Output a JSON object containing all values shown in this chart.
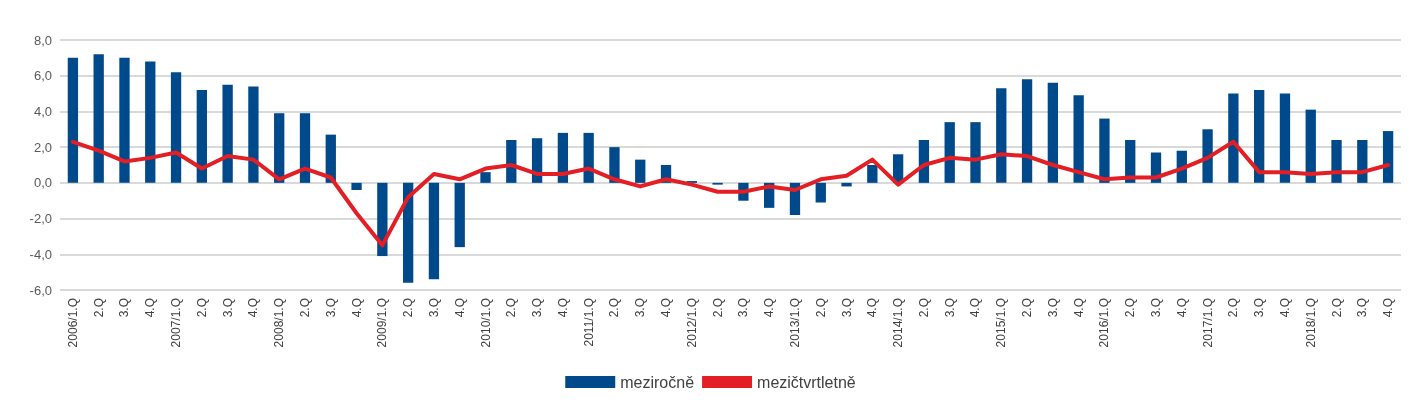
{
  "chart_data": {
    "type": "bar",
    "categories": [
      "2006/1.Q",
      "2.Q",
      "3.Q",
      "4.Q",
      "2007/1.Q",
      "2.Q",
      "3.Q",
      "4.Q",
      "2008/1.Q",
      "2.Q",
      "3.Q",
      "4.Q",
      "2009/1.Q",
      "2.Q",
      "3.Q",
      "4.Q",
      "2010/1.Q",
      "2.Q",
      "3.Q",
      "4.Q",
      "2011/1.Q",
      "2.Q",
      "3.Q",
      "4.Q",
      "2012/1.Q",
      "2.Q",
      "3.Q",
      "4.Q",
      "2013/1.Q",
      "2.Q",
      "3.Q",
      "4.Q",
      "2014/1.Q",
      "2.Q",
      "3.Q",
      "4.Q",
      "2015/1.Q",
      "2.Q",
      "3.Q",
      "4.Q",
      "2016/1.Q",
      "2.Q",
      "3.Q",
      "4.Q",
      "2017/1.Q",
      "2.Q",
      "3.Q",
      "4.Q",
      "2018/1.Q",
      "2.Q",
      "3.Q",
      "4.Q"
    ],
    "series": [
      {
        "name": "meziročně",
        "color": "#004a8c",
        "values": [
          7.0,
          7.2,
          7.0,
          6.8,
          6.2,
          5.2,
          5.5,
          5.4,
          3.9,
          3.9,
          2.7,
          -0.4,
          -4.1,
          -5.6,
          -5.4,
          -3.6,
          0.6,
          2.4,
          2.5,
          2.8,
          2.8,
          2.0,
          1.3,
          1.0,
          0.1,
          -0.1,
          -1.0,
          -1.4,
          -1.8,
          -1.1,
          -0.2,
          1.0,
          1.6,
          2.4,
          3.4,
          3.4,
          5.3,
          5.8,
          5.6,
          4.9,
          3.6,
          2.4,
          1.7,
          1.8,
          3.0,
          5.0,
          5.2,
          5.0,
          4.1,
          2.4,
          2.4,
          2.9
        ]
      },
      {
        "name": "mezičtvrtletně",
        "type": "line",
        "color": "#e31e24",
        "values": [
          2.3,
          1.8,
          1.2,
          1.4,
          1.7,
          0.8,
          1.5,
          1.3,
          0.2,
          0.8,
          0.3,
          -1.7,
          -3.5,
          -0.8,
          0.5,
          0.2,
          0.8,
          1.0,
          0.5,
          0.5,
          0.8,
          0.2,
          -0.2,
          0.2,
          -0.1,
          -0.5,
          -0.5,
          -0.2,
          -0.4,
          0.2,
          0.4,
          1.3,
          -0.1,
          1.0,
          1.4,
          1.3,
          1.6,
          1.5,
          1.0,
          0.6,
          0.2,
          0.3,
          0.3,
          0.8,
          1.4,
          2.3,
          0.6,
          0.6,
          0.5,
          0.6,
          0.6,
          1.0
        ]
      }
    ],
    "ylim": [
      -6,
      8
    ],
    "yticks": [
      {
        "value": -6,
        "label": "-6,0"
      },
      {
        "value": -4,
        "label": "-4,0"
      },
      {
        "value": -2,
        "label": "-2,0"
      },
      {
        "value": 0,
        "label": "0,0"
      },
      {
        "value": 2,
        "label": "2,0"
      },
      {
        "value": 4,
        "label": "4,0"
      },
      {
        "value": 6,
        "label": "6,0"
      },
      {
        "value": 8,
        "label": "8,0"
      }
    ],
    "grid": "y",
    "legend": "bottom",
    "marker": "none",
    "line_style": "solid"
  }
}
